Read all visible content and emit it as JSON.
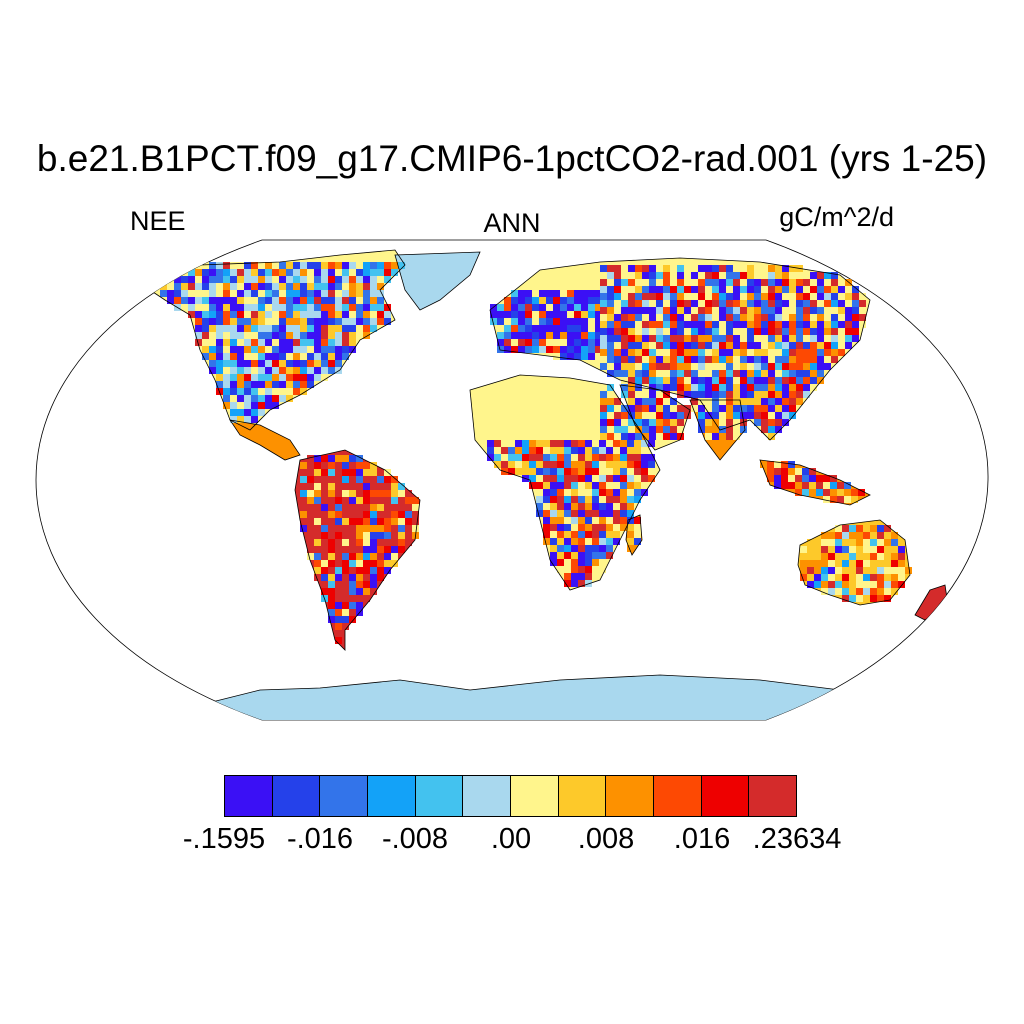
{
  "title": "b.e21.B1PCT.f09_g17.CMIP6-1pctCO2-rad.001 (yrs 1-25)",
  "left_label": "NEE",
  "center_label": "ANN",
  "right_label": "gC/m^2/d",
  "colorbar": {
    "colors": [
      "#3b10f5",
      "#2541ea",
      "#3374ea",
      "#13a2f8",
      "#43c2ef",
      "#a9d8ee",
      "#fff58c",
      "#fdc92a",
      "#fd9100",
      "#fd4903",
      "#ee0000",
      "#d42b2b"
    ],
    "labels": [
      "-.1595",
      "-.016",
      "-.008",
      ".00",
      ".008",
      ".016",
      ".23634"
    ]
  },
  "map": {
    "projection": "Robinson",
    "ocean_color": "#ffffff",
    "land_colors": {
      "strong_negative": "#3b10f5",
      "negative": "#3374ea",
      "weak_negative": "#43c2ef",
      "ice": "#a9d8ee",
      "near_zero": "#fff58c",
      "weak_positive": "#fdc92a",
      "positive": "#fd9100",
      "strong_positive": "#d42b2b"
    }
  }
}
